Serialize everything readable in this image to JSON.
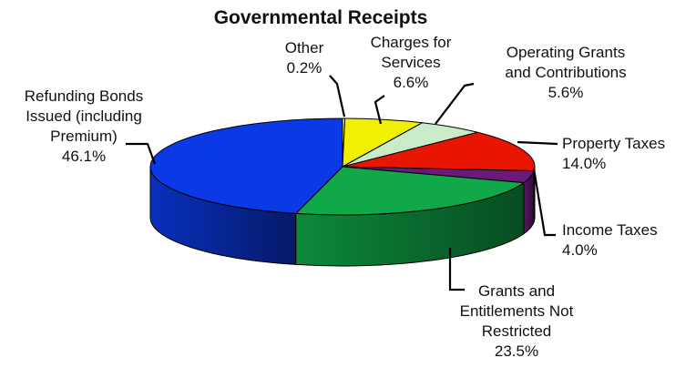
{
  "chart_data": {
    "type": "pie",
    "style": "3d",
    "title": "Governmental Receipts",
    "slices": [
      {
        "key": "other",
        "label_lines": [
          "Other"
        ],
        "value": 0.2,
        "value_label": "0.2%",
        "color": "#ffff33"
      },
      {
        "key": "charges",
        "label_lines": [
          "Charges for",
          "Services"
        ],
        "value": 6.6,
        "value_label": "6.6%",
        "color": "#f0f000"
      },
      {
        "key": "operating",
        "label_lines": [
          "Operating Grants",
          "and Contributions"
        ],
        "value": 5.6,
        "value_label": "5.6%",
        "color": "#c8ecc8"
      },
      {
        "key": "property",
        "label_lines": [
          "Property Taxes"
        ],
        "value": 14.0,
        "value_label": "14.0%",
        "color": "#e81500"
      },
      {
        "key": "income",
        "label_lines": [
          "Income Taxes"
        ],
        "value": 4.0,
        "value_label": "4.0%",
        "color": "#6a1a78"
      },
      {
        "key": "grants",
        "label_lines": [
          "Grants and",
          "Entitlements Not",
          "Restricted"
        ],
        "value": 23.5,
        "value_label": "23.5%",
        "color": "#10a848"
      },
      {
        "key": "refunding",
        "label_lines": [
          "Refunding Bonds",
          "Issued (including",
          "Premium)"
        ],
        "value": 46.1,
        "value_label": "46.1%",
        "color": "#0a3ae6"
      }
    ],
    "legend": "none"
  }
}
